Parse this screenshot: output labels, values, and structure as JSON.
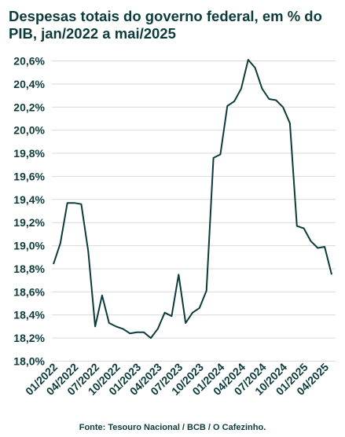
{
  "chart_data": {
    "type": "line",
    "title": "Despesas totais do governo federal, em % do PIB, jan/2022 a mai/2025",
    "xlabel": "",
    "ylabel": "",
    "ylim": [
      18.0,
      20.6
    ],
    "y_ticks": [
      "18,0%",
      "18,2%",
      "18,4%",
      "18,6%",
      "18,8%",
      "19,0%",
      "19,2%",
      "19,4%",
      "19,6%",
      "19,8%",
      "20,0%",
      "20,2%",
      "20,4%",
      "20,6%"
    ],
    "x_tick_labels": [
      "01/2022",
      "04/2022",
      "07/2022",
      "10/2022",
      "01/2023",
      "04/2023",
      "07/2023",
      "10/2023",
      "01/2024",
      "04/2024",
      "07/2024",
      "10/2024",
      "01/2025",
      "04/2025"
    ],
    "x": [
      "01/2022",
      "02/2022",
      "03/2022",
      "04/2022",
      "05/2022",
      "06/2022",
      "07/2022",
      "08/2022",
      "09/2022",
      "10/2022",
      "11/2022",
      "12/2022",
      "01/2023",
      "02/2023",
      "03/2023",
      "04/2023",
      "05/2023",
      "06/2023",
      "07/2023",
      "08/2023",
      "09/2023",
      "10/2023",
      "11/2023",
      "12/2023",
      "01/2024",
      "02/2024",
      "03/2024",
      "04/2024",
      "05/2024",
      "06/2024",
      "07/2024",
      "08/2024",
      "09/2024",
      "10/2024",
      "11/2024",
      "12/2024",
      "01/2025",
      "02/2025",
      "03/2025",
      "04/2025",
      "05/2025"
    ],
    "values": [
      18.84,
      19.02,
      19.37,
      19.37,
      19.36,
      18.95,
      18.3,
      18.57,
      18.33,
      18.3,
      18.28,
      18.24,
      18.25,
      18.25,
      18.2,
      18.28,
      18.42,
      18.39,
      18.75,
      18.33,
      18.42,
      18.46,
      18.61,
      19.76,
      19.79,
      20.21,
      20.25,
      20.36,
      20.61,
      20.54,
      20.36,
      20.27,
      20.26,
      20.2,
      20.06,
      19.17,
      19.15,
      19.04,
      18.98,
      18.99,
      18.75
    ],
    "grid": true,
    "line_color": "#0d3b3b"
  },
  "source": "Fonte: Tesouro Nacional / BCB / O Cafezinho."
}
